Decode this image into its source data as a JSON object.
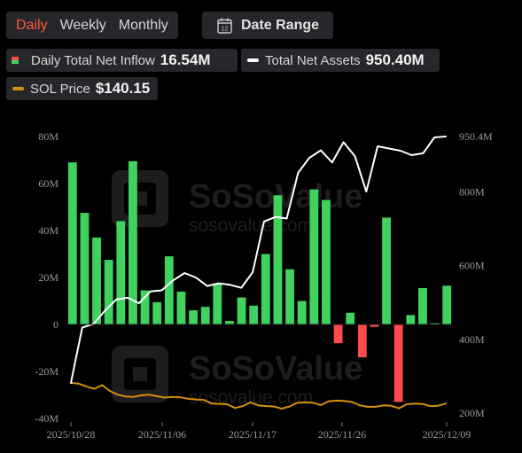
{
  "tabs": [
    {
      "label": "Daily",
      "active": true
    },
    {
      "label": "Weekly",
      "active": false
    },
    {
      "label": "Monthly",
      "active": false
    }
  ],
  "date_range": {
    "label": "Date Range",
    "icon": "calendar-icon",
    "icon_text": "12"
  },
  "legend": {
    "inflow": {
      "label": "Daily Total Net Inflow",
      "value": "16.54M"
    },
    "assets": {
      "label": "Total Net Assets",
      "value": "950.40M"
    },
    "price": {
      "label": "SOL Price",
      "value": "$140.15"
    }
  },
  "colors": {
    "positive": "#3fd25e",
    "negative": "#ff4b4b",
    "assets_line": "#ffffff",
    "price_line": "#d4900e",
    "active_tab": "#ff5a3c"
  },
  "watermark": {
    "brand": "SoSoValue",
    "url": "sosovalue.com"
  },
  "chart_data": {
    "type": "bar",
    "x_ticks": [
      "2025/10/28",
      "2025/11/06",
      "2025/11/17",
      "2025/11/26",
      "2025/12/09"
    ],
    "y_left_ticks": [
      "80M",
      "60M",
      "40M",
      "20M",
      "0",
      "-20M",
      "-40M"
    ],
    "y_right_ticks": [
      "950.4M",
      "800M",
      "600M",
      "400M",
      "200M"
    ],
    "ylim_left": [
      -40,
      80
    ],
    "ylim_right": [
      200,
      950.4
    ],
    "units": "M",
    "series": [
      {
        "name": "Daily Total Net Inflow",
        "axis": "left",
        "kind": "bar",
        "values": [
          69,
          47.5,
          37,
          27.5,
          44,
          69.5,
          14.5,
          9.5,
          29,
          14,
          6,
          7.5,
          17.5,
          1.5,
          11.5,
          8,
          30,
          55,
          23.5,
          10,
          57.5,
          53,
          -8,
          5,
          -14,
          -1,
          45.5,
          -33,
          4,
          15.5,
          0.5,
          16.5
        ]
      },
      {
        "name": "Total Net Assets",
        "axis": "right",
        "kind": "line",
        "values": [
          282,
          432,
          442,
          478,
          508,
          513,
          498,
          530,
          533,
          560,
          580,
          568,
          545,
          552,
          548,
          540,
          582,
          720,
          732,
          728,
          852,
          893,
          913,
          880,
          935,
          897,
          801,
          924,
          918,
          912,
          900,
          905,
          948,
          950.4
        ]
      },
      {
        "name": "SOL Price",
        "axis": "right",
        "kind": "line",
        "values": [
          282,
          280,
          272,
          266,
          276,
          260,
          250,
          245,
          244,
          248,
          250,
          246,
          242,
          244,
          243,
          239,
          237,
          236,
          226,
          225,
          224,
          214,
          219,
          229,
          221,
          219,
          218,
          212,
          218,
          228,
          229,
          228,
          222,
          232,
          234,
          233,
          230,
          221,
          217,
          217,
          221,
          220,
          213,
          224,
          226,
          225,
          219,
          220,
          226
        ]
      }
    ]
  }
}
